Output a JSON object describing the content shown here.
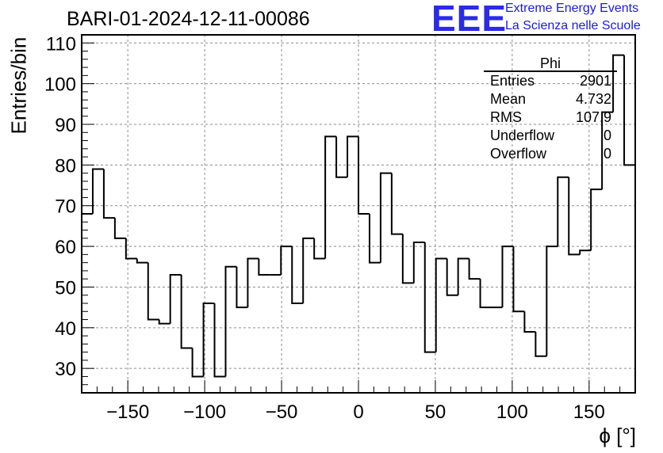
{
  "header": {
    "title": "BARI-01-2024-12-11-00086",
    "logo_text": "EEE",
    "logo_line1": "Extreme Energy Events",
    "logo_line2": "La Scienza nelle Scuole"
  },
  "stats_box": {
    "title": "Phi",
    "rows": [
      {
        "label": "Entries",
        "value": "2901"
      },
      {
        "label": "Mean",
        "value": "4.732"
      },
      {
        "label": "RMS",
        "value": "107.9"
      },
      {
        "label": "Underflow",
        "value": "0"
      },
      {
        "label": "Overflow",
        "value": "0"
      }
    ]
  },
  "chart_data": {
    "type": "bar",
    "style": "step-histogram",
    "title": "BARI-01-2024-12-11-00086",
    "xlabel": "ϕ [°]",
    "ylabel": "Entries/bin",
    "xlim": [
      -180,
      180
    ],
    "ylim": [
      24,
      112
    ],
    "bin_width": 7.2,
    "x_ticks": [
      -150,
      -100,
      -50,
      0,
      50,
      100,
      150
    ],
    "x_tick_labels": [
      "−150",
      "−100",
      "−50",
      "0",
      "50",
      "100",
      "150"
    ],
    "y_ticks": [
      30,
      40,
      50,
      60,
      70,
      80,
      90,
      100,
      110
    ],
    "y_tick_labels": [
      "30",
      "40",
      "50",
      "60",
      "70",
      "80",
      "90",
      "100",
      "110"
    ],
    "grid": true,
    "values": [
      68,
      79,
      67,
      62,
      57,
      56,
      42,
      41,
      53,
      35,
      28,
      46,
      28,
      55,
      45,
      57,
      53,
      53,
      60,
      46,
      62,
      57,
      87,
      77,
      87,
      68,
      56,
      78,
      63,
      51,
      61,
      34,
      57,
      48,
      57,
      52,
      45,
      45,
      60,
      44,
      39,
      33,
      60,
      77,
      58,
      59,
      74,
      93,
      107,
      80
    ],
    "colors": {
      "line": "#000000",
      "grid": "#8c8c8c",
      "logo": "#2a2ae8"
    }
  }
}
